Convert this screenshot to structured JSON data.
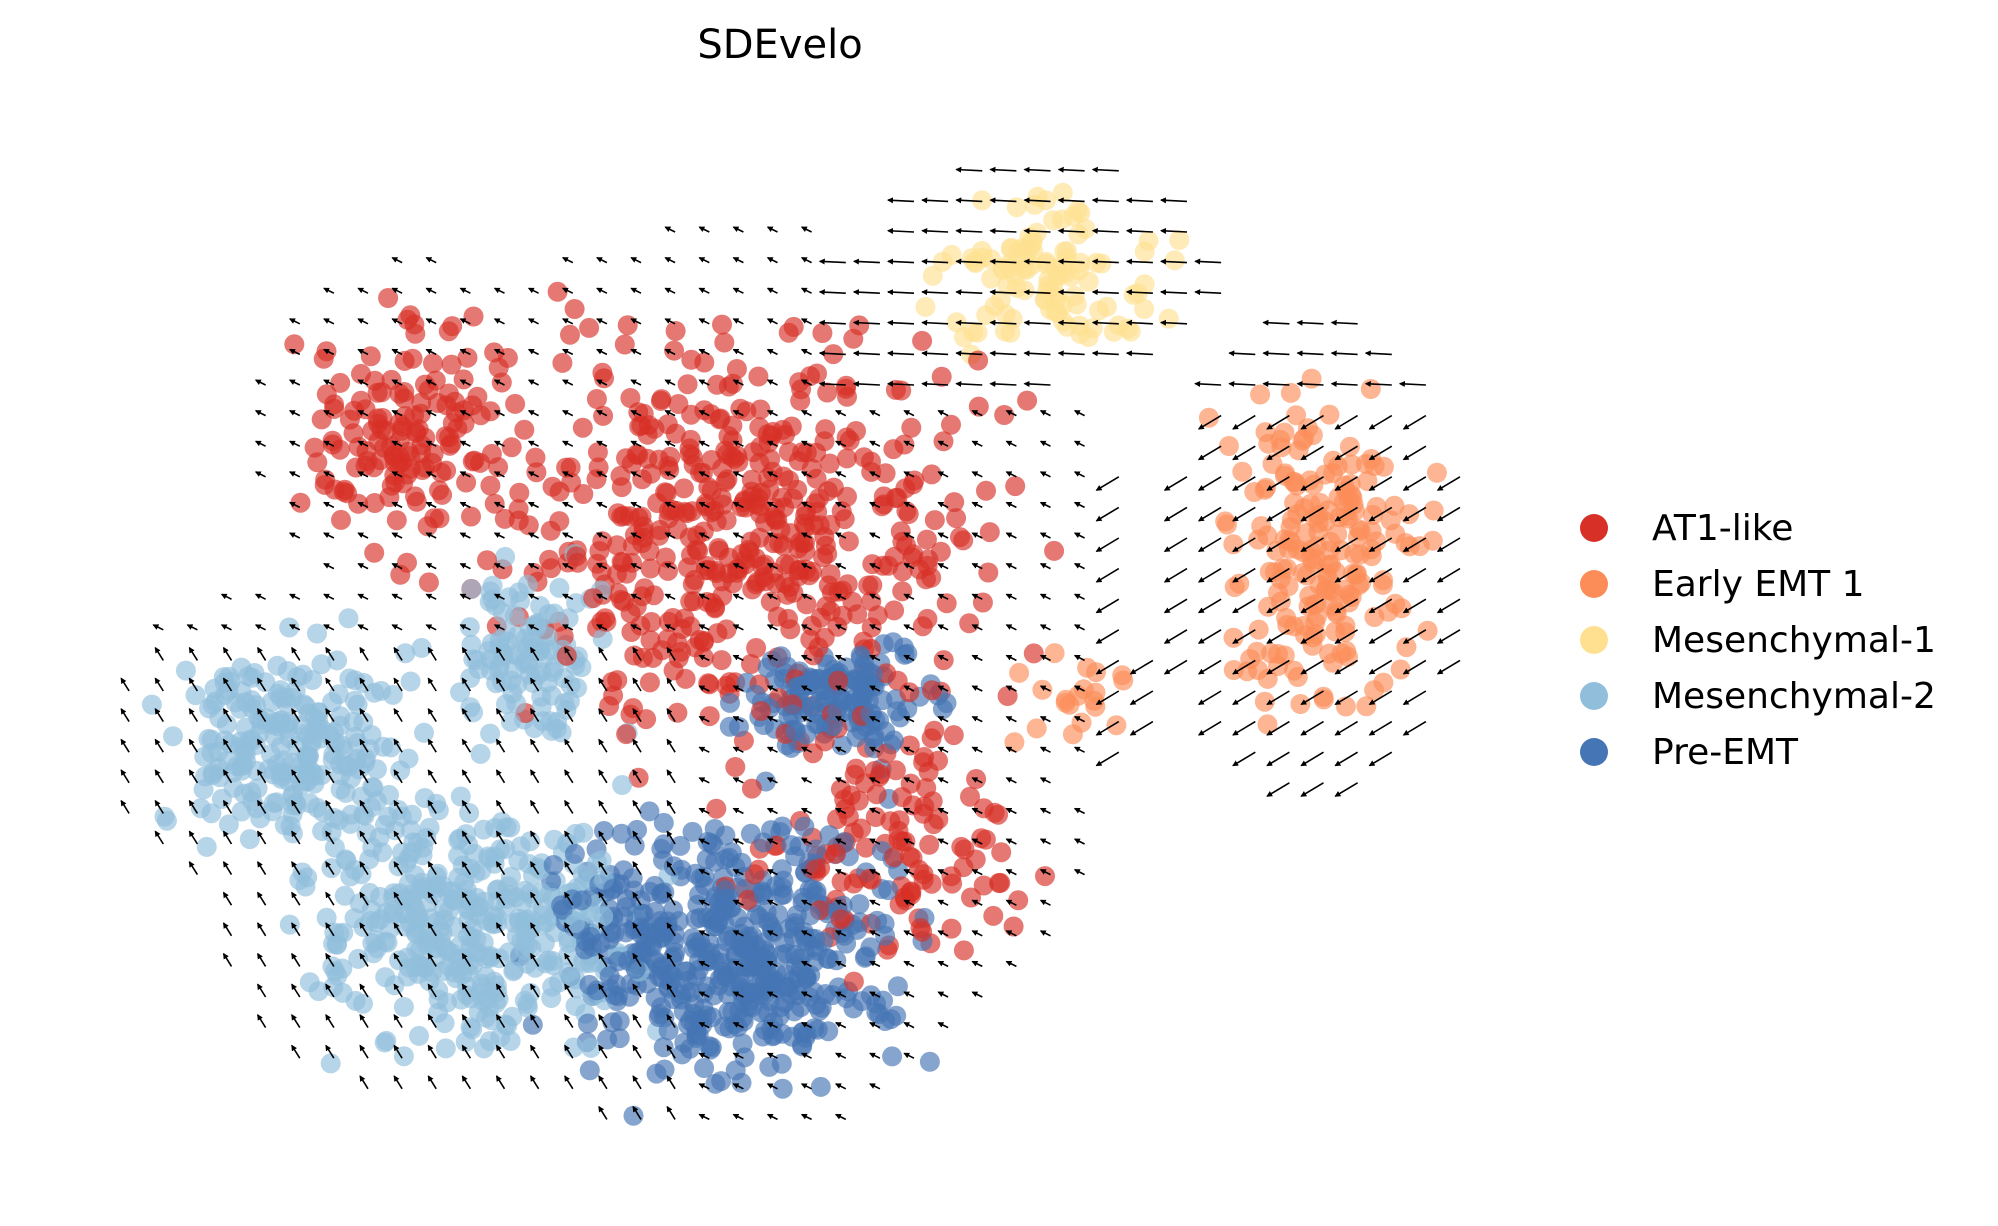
{
  "chart_data": {
    "type": "scatter",
    "title": "SDEvelo",
    "xlabel": "",
    "ylabel": "",
    "axes_visible": false,
    "grid": false,
    "legend_position": "right",
    "overlay": "velocity stream arrows (quiver grid)",
    "series": [
      {
        "name": "AT1-like",
        "color": "#d73027",
        "regions": [
          {
            "cx": 0.47,
            "cy": 0.6,
            "rx": 0.26,
            "ry": 0.28,
            "n": 520
          },
          {
            "cx": 0.23,
            "cy": 0.7,
            "rx": 0.1,
            "ry": 0.16,
            "n": 140
          },
          {
            "cx": 0.58,
            "cy": 0.3,
            "rx": 0.14,
            "ry": 0.16,
            "n": 120
          }
        ]
      },
      {
        "name": "Early EMT 1",
        "color": "#fc8d59",
        "regions": [
          {
            "cx": 0.9,
            "cy": 0.58,
            "rx": 0.1,
            "ry": 0.22,
            "n": 200
          },
          {
            "cx": 0.72,
            "cy": 0.45,
            "rx": 0.06,
            "ry": 0.07,
            "n": 20
          }
        ]
      },
      {
        "name": "Mesenchymal-1",
        "color": "#fee090",
        "regions": [
          {
            "cx": 0.7,
            "cy": 0.86,
            "rx": 0.12,
            "ry": 0.1,
            "n": 110
          }
        ]
      },
      {
        "name": "Mesenchymal-2",
        "color": "#91bfdb",
        "regions": [
          {
            "cx": 0.14,
            "cy": 0.4,
            "rx": 0.12,
            "ry": 0.14,
            "n": 230
          },
          {
            "cx": 0.28,
            "cy": 0.22,
            "rx": 0.17,
            "ry": 0.17,
            "n": 380
          },
          {
            "cx": 0.32,
            "cy": 0.48,
            "rx": 0.08,
            "ry": 0.12,
            "n": 110
          }
        ]
      },
      {
        "name": "Pre-EMT",
        "color": "#4575b4",
        "regions": [
          {
            "cx": 0.46,
            "cy": 0.2,
            "rx": 0.17,
            "ry": 0.18,
            "n": 500
          },
          {
            "cx": 0.55,
            "cy": 0.44,
            "rx": 0.1,
            "ry": 0.08,
            "n": 150
          }
        ]
      }
    ]
  },
  "legend": {
    "items": [
      {
        "label": "AT1-like",
        "color": "#d73027"
      },
      {
        "label": "Early EMT 1",
        "color": "#fc8d59"
      },
      {
        "label": "Mesenchymal-1",
        "color": "#fee090"
      },
      {
        "label": "Mesenchymal-2",
        "color": "#91bfdb"
      },
      {
        "label": "Pre-EMT",
        "color": "#4575b4"
      }
    ]
  }
}
